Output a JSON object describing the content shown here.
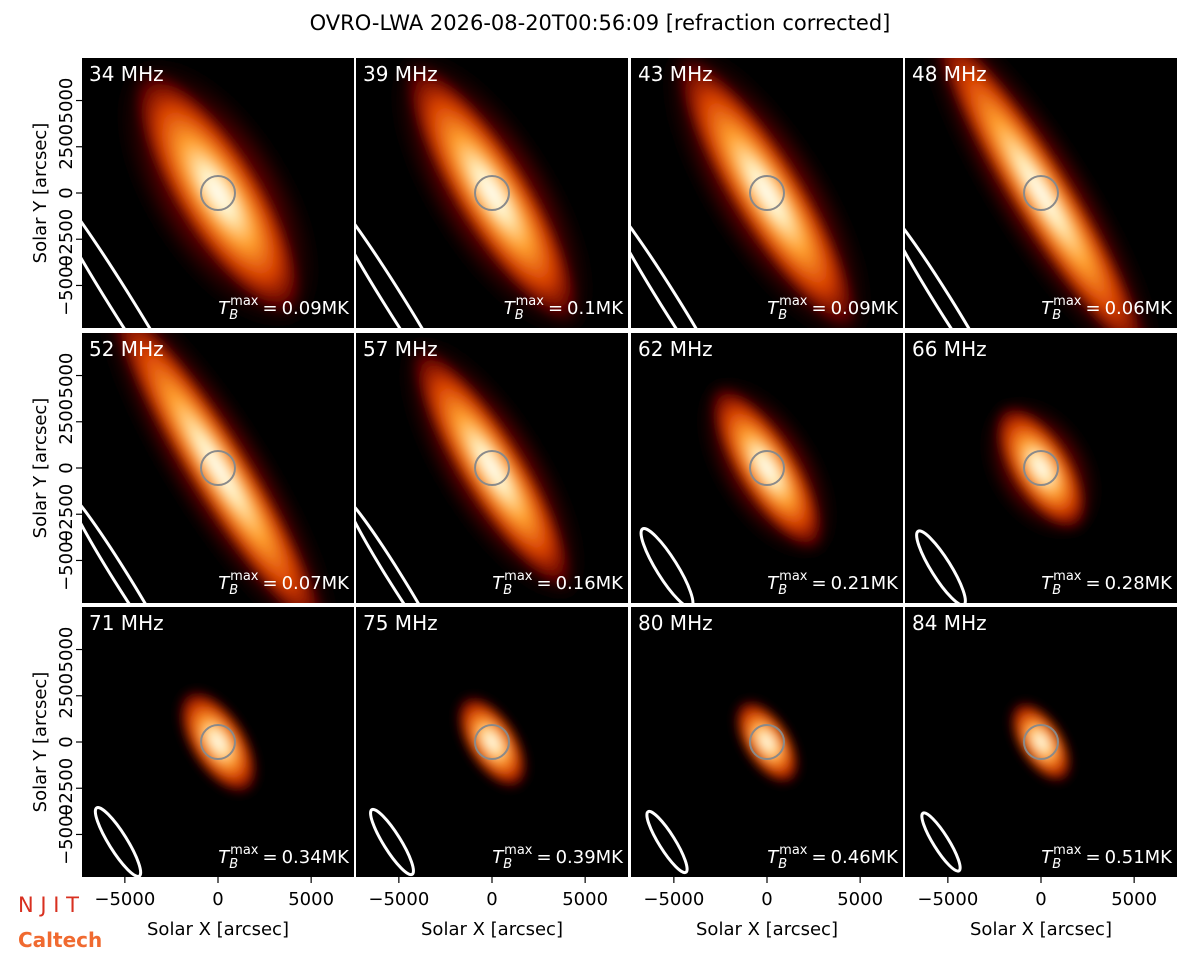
{
  "title": "OVRO-LWA 2026-08-20T00:56:09 [refraction corrected]",
  "logos": {
    "njit": "N J I T",
    "caltech": "Caltech"
  },
  "tb_symbol": {
    "base": "T",
    "sub": "B",
    "sup": "max",
    "eq": "="
  },
  "chart_data": [
    {
      "type": "heatmap",
      "title": "34 MHz",
      "tb_max": "0.09MK",
      "xlim": [
        -7300,
        7300
      ],
      "ylim": [
        -7300,
        7300
      ],
      "ylabel": "Solar Y [arcsec]",
      "yticks": [
        {
          "value": -5000,
          "label": "−5000"
        },
        {
          "value": -2500,
          "label": "−2500"
        },
        0,
        2500,
        5000
      ]
    },
    {
      "type": "heatmap",
      "title": "39 MHz",
      "tb_max": "0.1MK",
      "xlim": [
        -7300,
        7300
      ],
      "ylim": [
        -7300,
        7300
      ]
    },
    {
      "type": "heatmap",
      "title": "43 MHz",
      "tb_max": "0.09MK",
      "xlim": [
        -7300,
        7300
      ],
      "ylim": [
        -7300,
        7300
      ]
    },
    {
      "type": "heatmap",
      "title": "48 MHz",
      "tb_max": "0.06MK",
      "xlim": [
        -7300,
        7300
      ],
      "ylim": [
        -7300,
        7300
      ]
    },
    {
      "type": "heatmap",
      "title": "52 MHz",
      "tb_max": "0.07MK",
      "xlim": [
        -7300,
        7300
      ],
      "ylim": [
        -7300,
        7300
      ],
      "ylabel": "Solar Y [arcsec]",
      "yticks": [
        {
          "value": -5000,
          "label": "−5000"
        },
        {
          "value": -2500,
          "label": "−2500"
        },
        0,
        2500,
        5000
      ]
    },
    {
      "type": "heatmap",
      "title": "57 MHz",
      "tb_max": "0.16MK",
      "xlim": [
        -7300,
        7300
      ],
      "ylim": [
        -7300,
        7300
      ]
    },
    {
      "type": "heatmap",
      "title": "62 MHz",
      "tb_max": "0.21MK",
      "xlim": [
        -7300,
        7300
      ],
      "ylim": [
        -7300,
        7300
      ]
    },
    {
      "type": "heatmap",
      "title": "66 MHz",
      "tb_max": "0.28MK",
      "xlim": [
        -7300,
        7300
      ],
      "ylim": [
        -7300,
        7300
      ]
    },
    {
      "type": "heatmap",
      "title": "71 MHz",
      "tb_max": "0.34MK",
      "xlim": [
        -7300,
        7300
      ],
      "ylim": [
        -7300,
        7300
      ],
      "ylabel": "Solar Y [arcsec]",
      "yticks": [
        {
          "value": -5000,
          "label": "−5000"
        },
        {
          "value": -2500,
          "label": "−2500"
        },
        0,
        2500,
        5000
      ],
      "xlabel": "Solar X [arcsec]",
      "xticks": [
        {
          "value": -5000,
          "label": "−5000"
        },
        0,
        5000
      ]
    },
    {
      "type": "heatmap",
      "title": "75 MHz",
      "tb_max": "0.39MK",
      "xlim": [
        -7300,
        7300
      ],
      "ylim": [
        -7300,
        7300
      ],
      "xlabel": "Solar X [arcsec]",
      "xticks": [
        {
          "value": -5000,
          "label": "−5000"
        },
        0,
        5000
      ]
    },
    {
      "type": "heatmap",
      "title": "80 MHz",
      "tb_max": "0.46MK",
      "xlim": [
        -7300,
        7300
      ],
      "ylim": [
        -7300,
        7300
      ],
      "xlabel": "Solar X [arcsec]",
      "xticks": [
        {
          "value": -5000,
          "label": "−5000"
        },
        0,
        5000
      ]
    },
    {
      "type": "heatmap",
      "title": "84 MHz",
      "tb_max": "0.51MK",
      "xlim": [
        -7300,
        7300
      ],
      "ylim": [
        -7300,
        7300
      ],
      "xlabel": "Solar X [arcsec]",
      "xticks": [
        {
          "value": -5000,
          "label": "−5000"
        },
        0,
        5000
      ]
    }
  ]
}
